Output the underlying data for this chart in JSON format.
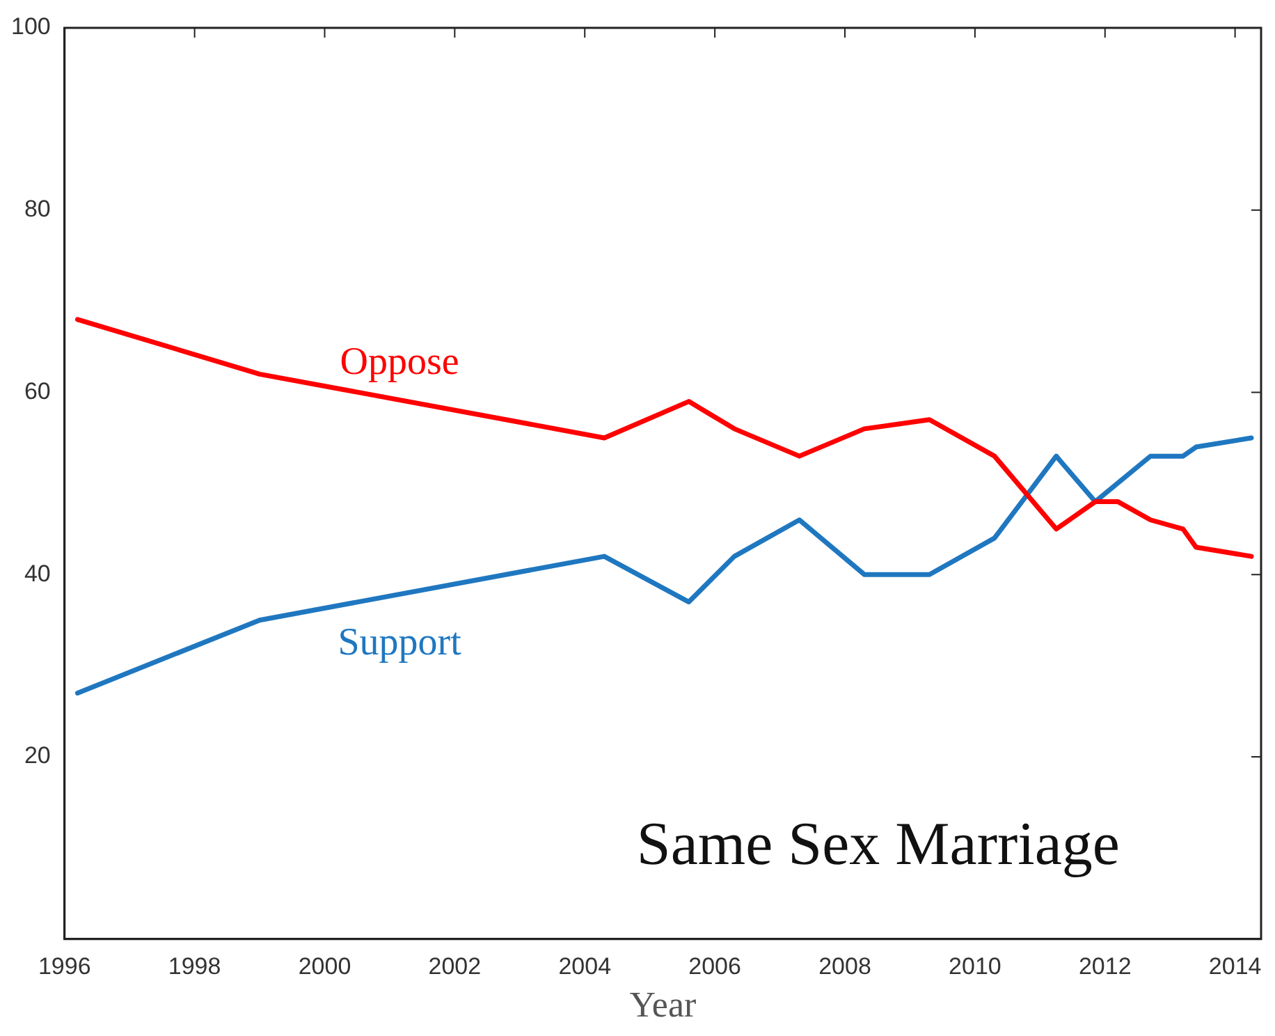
{
  "chart_data": {
    "type": "line",
    "title": "Same Sex Marriage",
    "xlabel": "Year",
    "xlim": [
      1996,
      2014.4
    ],
    "xticks": [
      1996,
      1998,
      2000,
      2002,
      2004,
      2006,
      2008,
      2010,
      2012,
      2014
    ],
    "ylim": [
      0,
      100
    ],
    "yticks": [
      20,
      40,
      60,
      80,
      100
    ],
    "grid": false,
    "legend": false,
    "marker": "none",
    "line_style": "solid",
    "series": [
      {
        "name": "Oppose",
        "color": "#ff0000",
        "x": [
          1996.2,
          1999,
          2004.3,
          2005.6,
          2006.3,
          2007.3,
          2008.3,
          2009.3,
          2010.3,
          2011.25,
          2011.85,
          2012.2,
          2012.7,
          2013.2,
          2013.4,
          2014.25
        ],
        "values": [
          68,
          62,
          55,
          59,
          56,
          53,
          56,
          57,
          53,
          45,
          48,
          48,
          46,
          45,
          43,
          42
        ]
      },
      {
        "name": "Support",
        "color": "#1f77c0",
        "x": [
          1996.2,
          1999,
          2004.3,
          2005.6,
          2006.3,
          2007.3,
          2008.3,
          2009.3,
          2010.3,
          2011.25,
          2011.85,
          2012.7,
          2013.2,
          2013.4,
          2014.25
        ],
        "values": [
          27,
          35,
          42,
          37,
          42,
          46,
          40,
          40,
          44,
          53,
          48,
          53,
          53,
          54,
          55
        ]
      }
    ]
  }
}
